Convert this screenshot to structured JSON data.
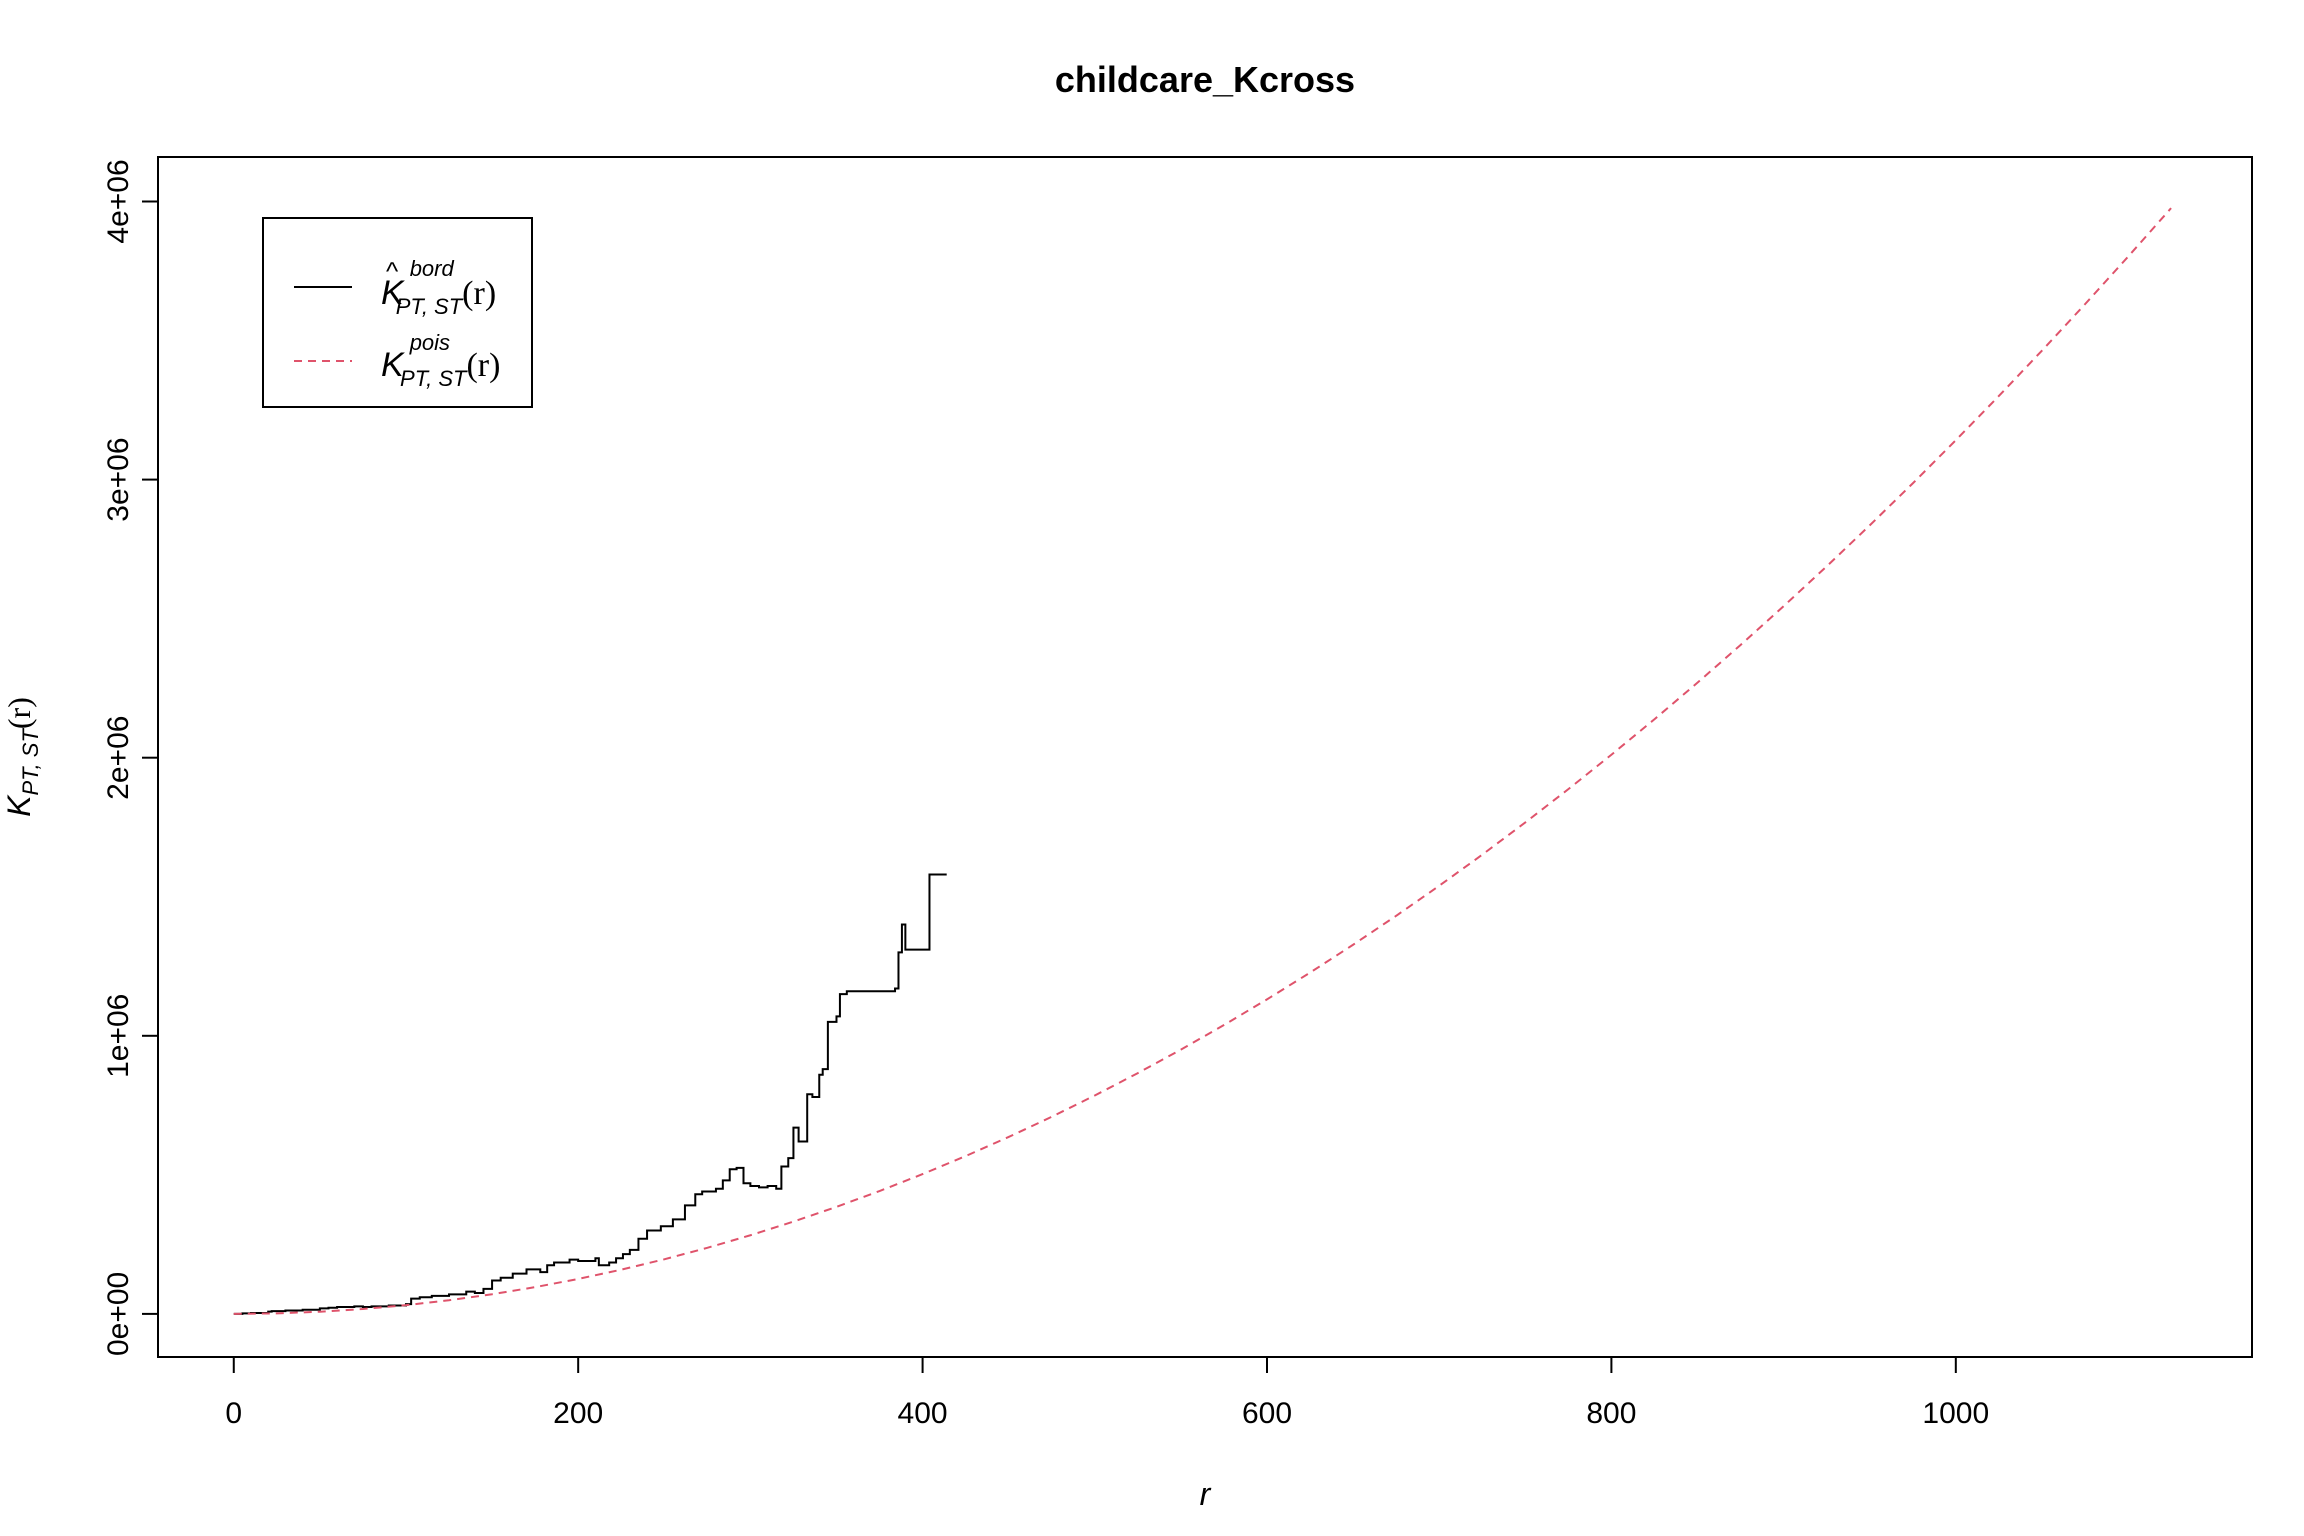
{
  "chart_data": {
    "type": "line",
    "title": "childcare_Kcross",
    "xlabel": "r",
    "ylabel": {
      "main": "K",
      "sub": "PT, ST",
      "arg": "(r)"
    },
    "xlim": [
      -44,
      1172
    ],
    "ylim": [
      -155000,
      4160000
    ],
    "xticks": [
      0,
      200,
      400,
      600,
      800,
      1000
    ],
    "xtick_labels": [
      "0",
      "200",
      "400",
      "600",
      "800",
      "1000"
    ],
    "yticks": [
      0,
      1000000,
      2000000,
      3000000,
      4000000
    ],
    "ytick_labels": [
      "0e+00",
      "1e+06",
      "2e+06",
      "3e+06",
      "4e+06"
    ],
    "grid": false,
    "legend": {
      "placement": "top-left",
      "entries": [
        {
          "main": "K",
          "hat": "^",
          "sup": "bord",
          "sub": "PT, ST",
          "arg": "(r)"
        },
        {
          "main": "K",
          "hat": "",
          "sup": "pois",
          "sub": "PT, ST",
          "arg": "(r)"
        }
      ]
    },
    "series": [
      {
        "style": "solid",
        "color": "#000000",
        "x": [
          0,
          5,
          10,
          20,
          22,
          30,
          40,
          50,
          55,
          60,
          70,
          75,
          80,
          90,
          100,
          103,
          108,
          115,
          125,
          135,
          140,
          145,
          150,
          155,
          162,
          170,
          178,
          182,
          186,
          195,
          200,
          210,
          212,
          218,
          222,
          226,
          230,
          235,
          240,
          244,
          248,
          255,
          262,
          268,
          272,
          280,
          284,
          288,
          292,
          296,
          300,
          305,
          310,
          315,
          318,
          322,
          325,
          328,
          333,
          336,
          340,
          342,
          345,
          350,
          352,
          356,
          360,
          370,
          378,
          384,
          386,
          388,
          390,
          392,
          400,
          404,
          408,
          414
        ],
        "y": [
          0,
          2000,
          3000,
          8000,
          10000,
          12000,
          15000,
          20000,
          22000,
          25000,
          27000,
          25000,
          27000,
          30000,
          35000,
          55000,
          60000,
          65000,
          70000,
          80000,
          75000,
          90000,
          120000,
          130000,
          145000,
          160000,
          150000,
          175000,
          185000,
          195000,
          190000,
          200000,
          175000,
          185000,
          200000,
          215000,
          230000,
          270000,
          300000,
          300000,
          315000,
          340000,
          390000,
          430000,
          440000,
          450000,
          480000,
          520000,
          525000,
          470000,
          460000,
          455000,
          460000,
          450000,
          530000,
          560000,
          670000,
          620000,
          790000,
          780000,
          860000,
          880000,
          1050000,
          1070000,
          1150000,
          1160000,
          1160000,
          1160000,
          1160000,
          1170000,
          1300000,
          1400000,
          1310000,
          1310000,
          1310000,
          1580000,
          1580000,
          1580000
        ]
      },
      {
        "style": "dashed",
        "color": "#df536b",
        "x": [
          0,
          25,
          50,
          75,
          100,
          125,
          150,
          175,
          200,
          225,
          250,
          275,
          300,
          325,
          350,
          375,
          400,
          425,
          450,
          475,
          500,
          525,
          550,
          575,
          600,
          625,
          650,
          675,
          700,
          725,
          750,
          775,
          800,
          825,
          850,
          875,
          900,
          925,
          950,
          975,
          1000,
          1025,
          1050,
          1075,
          1100,
          1125
        ],
        "y": [
          0,
          1963,
          7854,
          17671,
          31416,
          49087,
          70686,
          96211,
          125664,
          159043,
          196350,
          237583,
          282743,
          331831,
          384845,
          441786,
          502655,
          567450,
          636173,
          708822,
          785398,
          865902,
          950332,
          1038689,
          1130973,
          1227185,
          1327323,
          1431388,
          1539380,
          1651300,
          1767146,
          1886919,
          2010619,
          2138246,
          2269801,
          2405282,
          2544690,
          2688025,
          2835287,
          2986477,
          3141593,
          3300636,
          3463606,
          3630503,
          3801327,
          3976078
        ]
      }
    ]
  }
}
